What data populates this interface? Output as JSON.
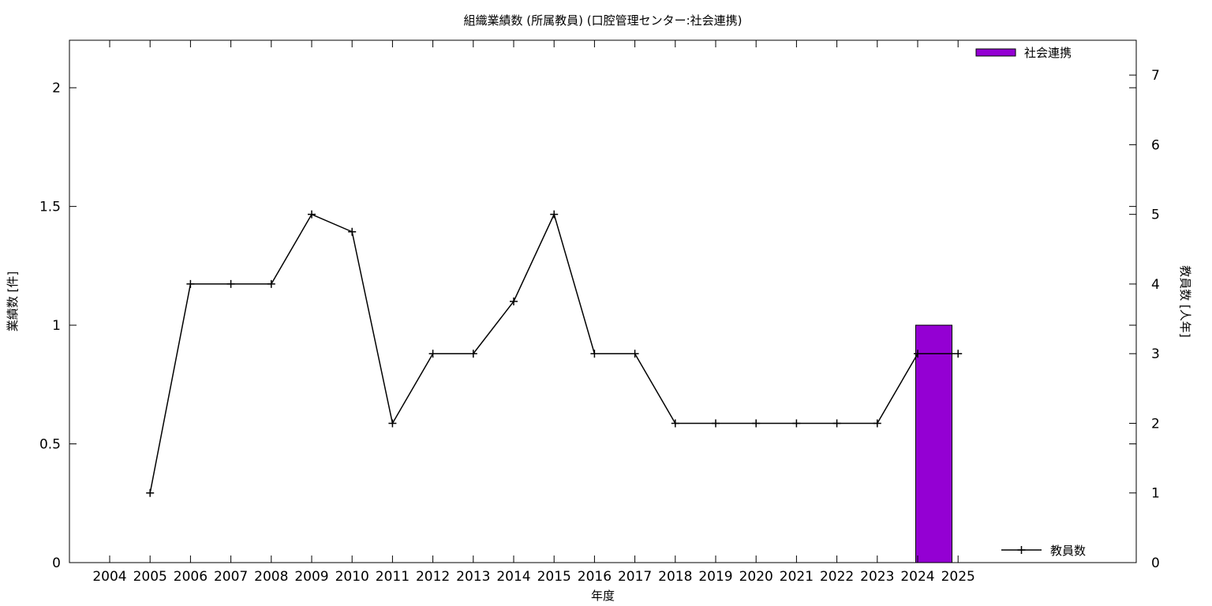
{
  "chart_data": {
    "type": "bar",
    "title": "組織業績数 (所属教員) (口腔管理センター:社会連携)",
    "xlabel": "年度",
    "ylabel": "業績数 [件]",
    "y2label": "教員数 [人年]",
    "categories": [
      "2004",
      "2005",
      "2006",
      "2007",
      "2008",
      "2009",
      "2010",
      "2011",
      "2012",
      "2013",
      "2014",
      "2015",
      "2016",
      "2017",
      "2018",
      "2019",
      "2020",
      "2021",
      "2022",
      "2023",
      "2024",
      "2025"
    ],
    "ylim": [
      0,
      2.2
    ],
    "yticks": [
      0,
      0.5,
      1,
      1.5,
      2
    ],
    "ytick_labels": [
      "0",
      "0.5",
      "1",
      "1.5",
      "2"
    ],
    "y2lim": [
      0,
      7.5
    ],
    "y2ticks": [
      0,
      1,
      2,
      3,
      4,
      5,
      6,
      7
    ],
    "y2tick_labels": [
      "0",
      "1",
      "2",
      "3",
      "4",
      "5",
      "6",
      "7"
    ],
    "legend_placement": "top-right",
    "grid": false,
    "series": [
      {
        "name": "社会連携",
        "type": "bar",
        "axis": "left",
        "color": "#9400d3",
        "values": [
          0,
          0,
          0,
          0,
          0,
          0,
          0,
          0,
          0,
          0,
          0,
          0,
          0,
          0,
          0,
          0,
          0,
          0,
          0,
          0,
          1,
          0
        ]
      },
      {
        "name": "教員数",
        "type": "line",
        "axis": "right",
        "color": "#000000",
        "marker": "plus",
        "values": [
          null,
          1,
          4,
          4,
          4,
          5,
          4.75,
          2,
          3,
          3,
          3.75,
          5,
          3,
          3,
          2,
          2,
          2,
          2,
          2,
          2,
          3,
          3
        ]
      }
    ]
  }
}
